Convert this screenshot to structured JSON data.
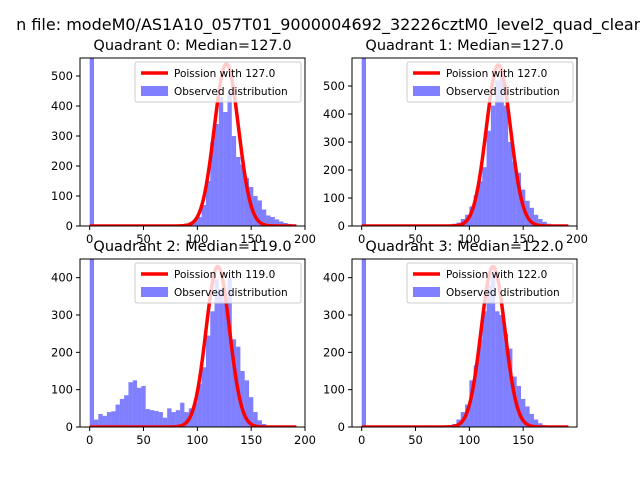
{
  "figure": {
    "suptitle": "n file: modeM0/AS1A10_057T01_9000004692_32226cztM0_level2_quad_clean"
  },
  "colors": {
    "observed": "#0000ff",
    "poisson": "#ff0000"
  },
  "chart_data": [
    {
      "type": "bar",
      "title": "Quadrant 0: Median=127.0",
      "xlim": [
        -9,
        200
      ],
      "ylim": [
        0,
        560
      ],
      "xticks": [
        "0",
        "50",
        "100",
        "150",
        "200"
      ],
      "yticks": [
        "0",
        "100",
        "200",
        "300",
        "400",
        "500"
      ],
      "legend": {
        "placement": "top-right",
        "entries": [
          "Poission with 127.0",
          "Observed distribution"
        ]
      },
      "poisson_mean": 127.0,
      "poisson_peak": 540,
      "bin_width": 4,
      "bins": [
        {
          "x": 0,
          "y": 560
        },
        {
          "x": 76,
          "y": 3
        },
        {
          "x": 80,
          "y": 4
        },
        {
          "x": 84,
          "y": 6
        },
        {
          "x": 88,
          "y": 8
        },
        {
          "x": 92,
          "y": 12
        },
        {
          "x": 96,
          "y": 18
        },
        {
          "x": 100,
          "y": 30
        },
        {
          "x": 104,
          "y": 70
        },
        {
          "x": 108,
          "y": 150
        },
        {
          "x": 112,
          "y": 280
        },
        {
          "x": 116,
          "y": 340
        },
        {
          "x": 120,
          "y": 430
        },
        {
          "x": 124,
          "y": 380
        },
        {
          "x": 128,
          "y": 450
        },
        {
          "x": 132,
          "y": 300
        },
        {
          "x": 136,
          "y": 230
        },
        {
          "x": 140,
          "y": 205
        },
        {
          "x": 144,
          "y": 160
        },
        {
          "x": 148,
          "y": 130
        },
        {
          "x": 152,
          "y": 100
        },
        {
          "x": 156,
          "y": 85
        },
        {
          "x": 160,
          "y": 55
        },
        {
          "x": 164,
          "y": 35
        },
        {
          "x": 168,
          "y": 30
        },
        {
          "x": 172,
          "y": 22
        },
        {
          "x": 176,
          "y": 15
        },
        {
          "x": 180,
          "y": 10
        },
        {
          "x": 184,
          "y": 7
        },
        {
          "x": 188,
          "y": 4
        }
      ]
    },
    {
      "type": "bar",
      "title": "Quadrant 1: Median=127.0",
      "xlim": [
        -9,
        200
      ],
      "ylim": [
        0,
        600
      ],
      "xticks": [
        "0",
        "50",
        "100",
        "150",
        "200"
      ],
      "yticks": [
        "0",
        "100",
        "200",
        "300",
        "400",
        "500"
      ],
      "legend": {
        "placement": "top-right",
        "entries": [
          "Poission with 127.0",
          "Observed distribution"
        ]
      },
      "poisson_mean": 127.0,
      "poisson_peak": 575,
      "bin_width": 4,
      "bins": [
        {
          "x": 0,
          "y": 600
        },
        {
          "x": 76,
          "y": 3
        },
        {
          "x": 80,
          "y": 4
        },
        {
          "x": 84,
          "y": 8
        },
        {
          "x": 88,
          "y": 12
        },
        {
          "x": 92,
          "y": 25
        },
        {
          "x": 96,
          "y": 40
        },
        {
          "x": 100,
          "y": 70
        },
        {
          "x": 104,
          "y": 110
        },
        {
          "x": 108,
          "y": 160
        },
        {
          "x": 112,
          "y": 210
        },
        {
          "x": 116,
          "y": 340
        },
        {
          "x": 120,
          "y": 430
        },
        {
          "x": 124,
          "y": 520
        },
        {
          "x": 128,
          "y": 540
        },
        {
          "x": 132,
          "y": 430
        },
        {
          "x": 136,
          "y": 300
        },
        {
          "x": 140,
          "y": 230
        },
        {
          "x": 144,
          "y": 190
        },
        {
          "x": 148,
          "y": 130
        },
        {
          "x": 152,
          "y": 90
        },
        {
          "x": 156,
          "y": 65
        },
        {
          "x": 160,
          "y": 40
        },
        {
          "x": 164,
          "y": 25
        },
        {
          "x": 168,
          "y": 15
        },
        {
          "x": 172,
          "y": 8
        },
        {
          "x": 176,
          "y": 5
        },
        {
          "x": 180,
          "y": 3
        },
        {
          "x": 184,
          "y": 2
        },
        {
          "x": 188,
          "y": 2
        }
      ]
    },
    {
      "type": "bar",
      "title": "Quadrant 2: Median=119.0",
      "xlim": [
        -9,
        200
      ],
      "ylim": [
        0,
        450
      ],
      "xticks": [
        "0",
        "50",
        "100",
        "150",
        "200"
      ],
      "yticks": [
        "0",
        "100",
        "200",
        "300",
        "400"
      ],
      "legend": {
        "placement": "top-right",
        "entries": [
          "Poission with 119.0",
          "Observed distribution"
        ]
      },
      "poisson_mean": 119.0,
      "poisson_peak": 430,
      "bin_width": 4,
      "bins": [
        {
          "x": 0,
          "y": 450
        },
        {
          "x": 4,
          "y": 20
        },
        {
          "x": 8,
          "y": 35
        },
        {
          "x": 12,
          "y": 30
        },
        {
          "x": 16,
          "y": 40
        },
        {
          "x": 20,
          "y": 42
        },
        {
          "x": 24,
          "y": 60
        },
        {
          "x": 28,
          "y": 75
        },
        {
          "x": 32,
          "y": 85
        },
        {
          "x": 36,
          "y": 120
        },
        {
          "x": 40,
          "y": 125
        },
        {
          "x": 44,
          "y": 105
        },
        {
          "x": 48,
          "y": 110
        },
        {
          "x": 52,
          "y": 48
        },
        {
          "x": 56,
          "y": 45
        },
        {
          "x": 60,
          "y": 43
        },
        {
          "x": 64,
          "y": 40
        },
        {
          "x": 68,
          "y": 25
        },
        {
          "x": 72,
          "y": 50
        },
        {
          "x": 76,
          "y": 40
        },
        {
          "x": 80,
          "y": 45
        },
        {
          "x": 84,
          "y": 65
        },
        {
          "x": 88,
          "y": 40
        },
        {
          "x": 92,
          "y": 50
        },
        {
          "x": 96,
          "y": 65
        },
        {
          "x": 100,
          "y": 115
        },
        {
          "x": 104,
          "y": 160
        },
        {
          "x": 108,
          "y": 245
        },
        {
          "x": 112,
          "y": 310
        },
        {
          "x": 116,
          "y": 395
        },
        {
          "x": 120,
          "y": 370
        },
        {
          "x": 124,
          "y": 340
        },
        {
          "x": 128,
          "y": 400
        },
        {
          "x": 132,
          "y": 235
        },
        {
          "x": 136,
          "y": 215
        },
        {
          "x": 140,
          "y": 150
        },
        {
          "x": 144,
          "y": 125
        },
        {
          "x": 148,
          "y": 80
        },
        {
          "x": 152,
          "y": 40
        },
        {
          "x": 156,
          "y": 18
        },
        {
          "x": 160,
          "y": 8
        },
        {
          "x": 164,
          "y": 4
        },
        {
          "x": 168,
          "y": 2
        }
      ]
    },
    {
      "type": "bar",
      "title": "Quadrant 3: Median=122.0",
      "xlim": [
        -9,
        200
      ],
      "ylim": [
        0,
        450
      ],
      "xticks": [
        "0",
        "50",
        "100",
        "150"
      ],
      "yticks": [
        "0",
        "100",
        "200",
        "300",
        "400"
      ],
      "legend": {
        "placement": "top-right",
        "entries": [
          "Poission with 122.0",
          "Observed distribution"
        ]
      },
      "poisson_mean": 122.0,
      "poisson_peak": 430,
      "bin_width": 4,
      "bins": [
        {
          "x": 0,
          "y": 450
        },
        {
          "x": 80,
          "y": 4
        },
        {
          "x": 84,
          "y": 8
        },
        {
          "x": 88,
          "y": 20
        },
        {
          "x": 92,
          "y": 40
        },
        {
          "x": 96,
          "y": 60
        },
        {
          "x": 100,
          "y": 125
        },
        {
          "x": 104,
          "y": 165
        },
        {
          "x": 108,
          "y": 235
        },
        {
          "x": 112,
          "y": 310
        },
        {
          "x": 116,
          "y": 380
        },
        {
          "x": 120,
          "y": 410
        },
        {
          "x": 124,
          "y": 310
        },
        {
          "x": 128,
          "y": 300
        },
        {
          "x": 132,
          "y": 250
        },
        {
          "x": 136,
          "y": 210
        },
        {
          "x": 140,
          "y": 135
        },
        {
          "x": 144,
          "y": 110
        },
        {
          "x": 148,
          "y": 75
        },
        {
          "x": 152,
          "y": 55
        },
        {
          "x": 156,
          "y": 35
        },
        {
          "x": 160,
          "y": 20
        },
        {
          "x": 164,
          "y": 10
        },
        {
          "x": 168,
          "y": 5
        },
        {
          "x": 172,
          "y": 3
        },
        {
          "x": 176,
          "y": 2
        }
      ]
    }
  ]
}
